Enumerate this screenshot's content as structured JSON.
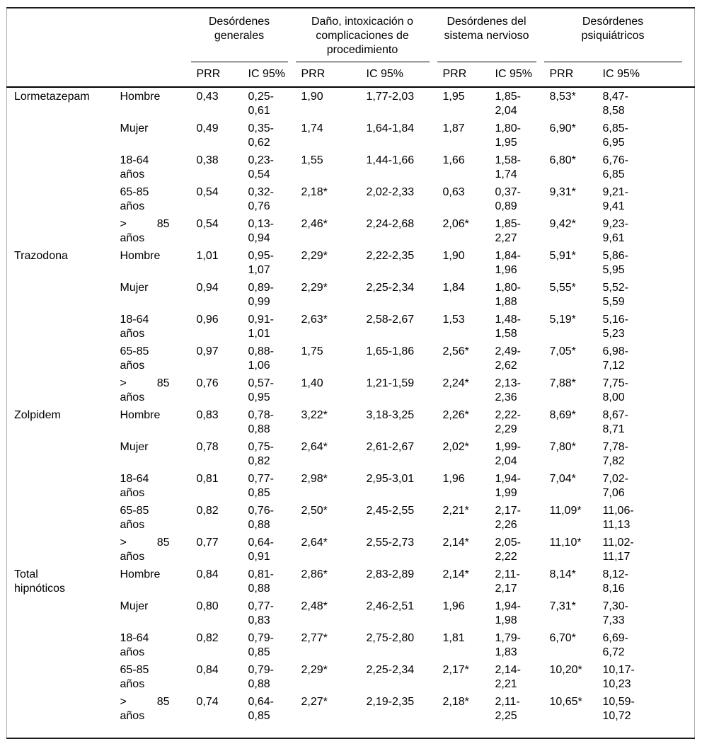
{
  "colors": {
    "background": "#ffffff",
    "text": "#000000",
    "rule": "#000000",
    "frame": "#ababab"
  },
  "table": {
    "col_groups": [
      {
        "title": "Desórdenes generales"
      },
      {
        "title": "Daño, intoxicación o complicaciones de procedimiento"
      },
      {
        "title": "Desórdenes del sistema nervioso"
      },
      {
        "title": "Desórdenes psiquiátricos"
      }
    ],
    "sub_headers": [
      "PRR",
      "IC 95%",
      "PRR",
      "IC 95%",
      "PRR",
      "IC 95%",
      "PRR",
      "IC 95%"
    ],
    "groups": [
      {
        "name": "Lormetazepam",
        "rows": [
          {
            "subgroup": "Hombre",
            "values": [
              "0,43",
              "0,25-0,61",
              "1,90",
              "1,77-2,03",
              "1,95",
              "1,85-2,04",
              "8,53*",
              "8,47-8,58"
            ]
          },
          {
            "subgroup": "Mujer",
            "values": [
              "0,49",
              "0,35-0,62",
              "1,74",
              "1,64-1,84",
              "1,87",
              "1,80-1,95",
              "6,90*",
              "6,85-6,95"
            ]
          },
          {
            "subgroup": "18-64 años",
            "values": [
              "0,38",
              "0,23-0,54",
              "1,55",
              "1,44-1,66",
              "1,66",
              "1,58-1,74",
              "6,80*",
              "6,76-6,85"
            ]
          },
          {
            "subgroup": "65-85 años",
            "values": [
              "0,54",
              "0,32-0,76",
              "2,18*",
              "2,02-2,33",
              "0,63",
              "0,37-0,89",
              "9,31*",
              "9,21-9,41"
            ]
          },
          {
            "subgroup": "> 85 años",
            "values": [
              "0,54",
              "0,13-0,94",
              "2,46*",
              "2,24-2,68",
              "2,06*",
              "1,85-2,27",
              "9,42*",
              "9,23-9,61"
            ]
          }
        ]
      },
      {
        "name": "Trazodona",
        "rows": [
          {
            "subgroup": "Hombre",
            "values": [
              "1,01",
              "0,95-1,07",
              "2,29*",
              "2,22-2,35",
              "1,90",
              "1,84-1,96",
              "5,91*",
              "5,86-5,95"
            ]
          },
          {
            "subgroup": "Mujer",
            "values": [
              "0,94",
              "0,89-0,99",
              "2,29*",
              "2,25-2,34",
              "1,84",
              "1,80-1,88",
              "5,55*",
              "5,52-5,59"
            ]
          },
          {
            "subgroup": "18-64 años",
            "values": [
              "0,96",
              "0,91-1,01",
              "2,63*",
              "2,58-2,67",
              "1,53",
              "1,48-1,58",
              "5,19*",
              "5,16-5,23"
            ]
          },
          {
            "subgroup": "65-85 años",
            "values": [
              "0,97",
              "0,88-1,06",
              "1,75",
              "1,65-1,86",
              "2,56*",
              "2,49-2,62",
              "7,05*",
              "6,98-7,12"
            ]
          },
          {
            "subgroup": "> 85 años",
            "values": [
              "0,76",
              "0,57-0,95",
              "1,40",
              "1,21-1,59",
              "2,24*",
              "2,13-2,36",
              "7,88*",
              "7,75-8,00"
            ]
          }
        ]
      },
      {
        "name": "Zolpidem",
        "rows": [
          {
            "subgroup": "Hombre",
            "values": [
              "0,83",
              "0,78-0,88",
              "3,22*",
              "3,18-3,25",
              "2,26*",
              "2,22-2,29",
              "8,69*",
              "8,67-8,71"
            ]
          },
          {
            "subgroup": "Mujer",
            "values": [
              "0,78",
              "0,75-0,82",
              "2,64*",
              "2,61-2,67",
              "2,02*",
              "1,99-2,04",
              "7,80*",
              "7,78-7,82"
            ]
          },
          {
            "subgroup": "18-64 años",
            "values": [
              "0,81",
              "0,77-0,85",
              "2,98*",
              "2,95-3,01",
              "1,96",
              "1,94-1,99",
              "7,04*",
              "7,02-7,06"
            ]
          },
          {
            "subgroup": "65-85 años",
            "values": [
              "0,82",
              "0,76-0,88",
              "2,50*",
              "2,45-2,55",
              "2,21*",
              "2,17-2,26",
              "11,09*",
              "11,06-11,13"
            ]
          },
          {
            "subgroup": "> 85 años",
            "values": [
              "0,77",
              "0,64-0,91",
              "2,64*",
              "2,55-2,73",
              "2,14*",
              "2,05-2,22",
              "11,10*",
              "11,02-11,17"
            ]
          }
        ]
      },
      {
        "name": "Total hipnóticos",
        "rows": [
          {
            "subgroup": "Hombre",
            "values": [
              "0,84",
              "0,81-0,88",
              "2,86*",
              "2,83-2,89",
              "2,14*",
              "2,11-2,17",
              "8,14*",
              "8,12-8,16"
            ]
          },
          {
            "subgroup": "Mujer",
            "values": [
              "0,80",
              "0,77-0,83",
              "2,48*",
              "2,46-2,51",
              "1,96",
              "1,94-1,98",
              "7,31*",
              "7,30-7,33"
            ]
          },
          {
            "subgroup": "18-64 años",
            "values": [
              "0,82",
              "0,79-0,85",
              "2,77*",
              "2,75-2,80",
              "1,81",
              "1,79-1,83",
              "6,70*",
              "6,69-6,72"
            ]
          },
          {
            "subgroup": "65-85 años",
            "values": [
              "0,84",
              "0,79-0,88",
              "2,29*",
              "2,25-2,34",
              "2,17*",
              "2,14-2,21",
              "10,20*",
              "10,17-10,23"
            ]
          },
          {
            "subgroup": "> 85 años",
            "values": [
              "0,74",
              "0,64-0,85",
              "2,27*",
              "2,19-2,35",
              "2,18*",
              "2,11-2,25",
              "10,65*",
              "10,59-10,72"
            ]
          }
        ]
      }
    ]
  }
}
